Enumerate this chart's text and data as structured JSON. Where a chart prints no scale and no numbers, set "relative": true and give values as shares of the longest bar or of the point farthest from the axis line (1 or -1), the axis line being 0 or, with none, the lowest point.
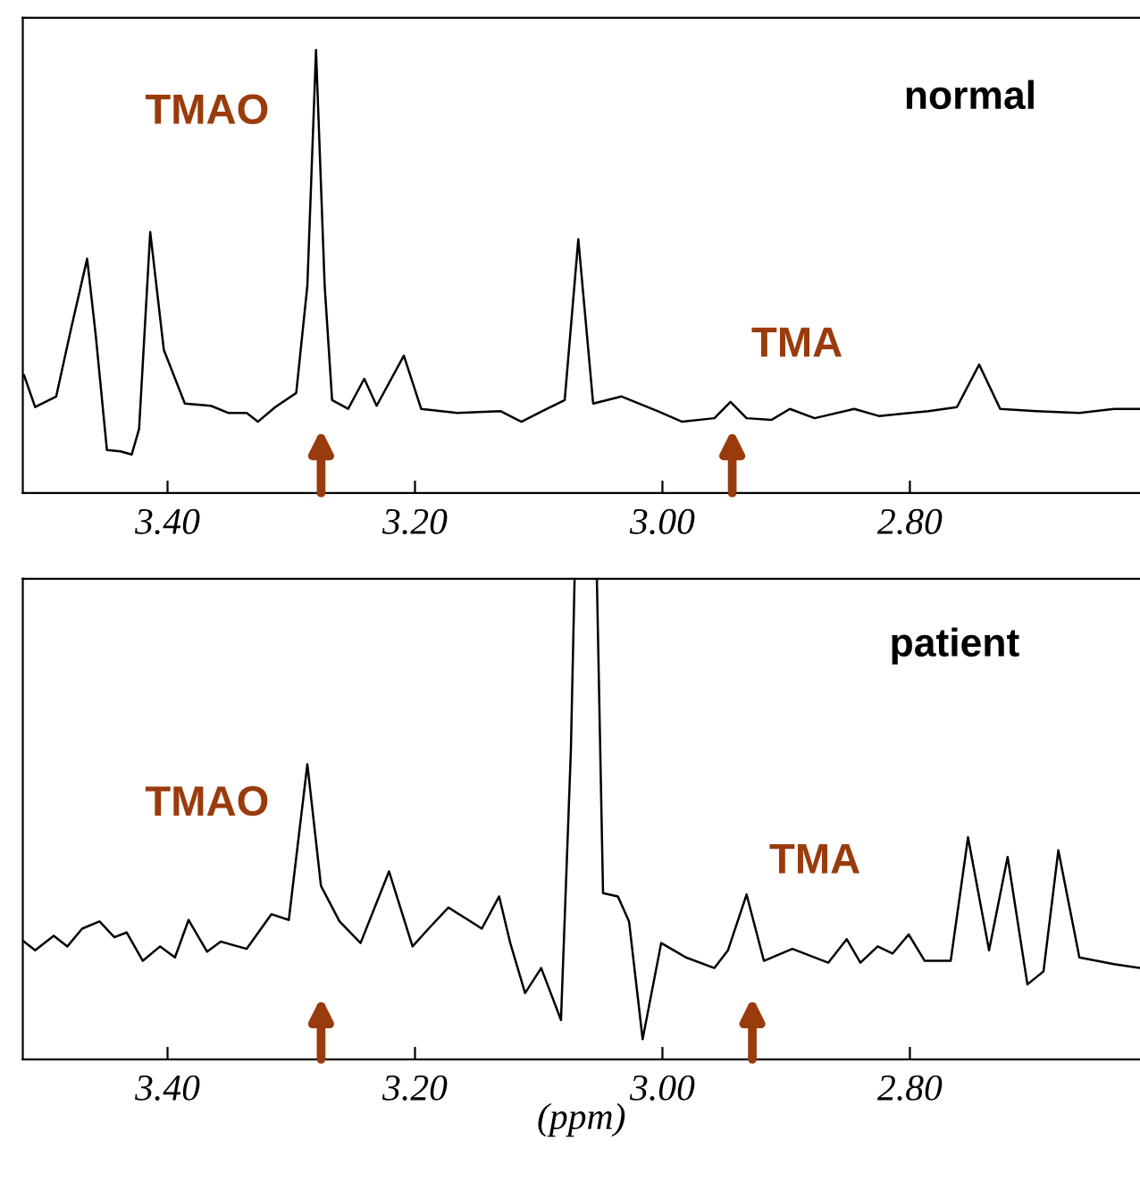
{
  "chart_data": [
    {
      "type": "line",
      "relative": true,
      "xlim": [
        3.517,
        2.614
      ],
      "xticks": [
        {
          "value": 3.4,
          "label": "3.40"
        },
        {
          "value": 3.2,
          "label": "3.20"
        },
        {
          "value": 3.0,
          "label": "3.00"
        },
        {
          "value": 2.8,
          "label": "2.80"
        }
      ],
      "tick_labels": "x",
      "annotations": [
        "TMAO",
        "TMA",
        "normal"
      ],
      "series": [
        {
          "color": "#000000",
          "x": [
            3.516,
            3.507,
            3.49,
            3.478,
            3.465,
            3.458,
            3.449,
            3.438,
            3.429,
            3.423,
            3.414,
            3.403,
            3.386,
            3.365,
            3.351,
            3.336,
            3.327,
            3.313,
            3.296,
            3.287,
            3.28,
            3.273,
            3.267,
            3.254,
            3.241,
            3.231,
            3.209,
            3.195,
            3.166,
            3.131,
            3.114,
            3.097,
            3.079,
            3.068,
            3.056,
            3.033,
            3.004,
            2.984,
            2.958,
            2.945,
            2.932,
            2.912,
            2.897,
            2.877,
            2.845,
            2.825,
            2.785,
            2.762,
            2.744,
            2.727,
            2.698,
            2.663,
            2.635,
            2.614
          ],
          "values": [
            0.266,
            0.194,
            0.218,
            0.371,
            0.529,
            0.355,
            0.097,
            0.094,
            0.087,
            0.145,
            0.589,
            0.323,
            0.202,
            0.197,
            0.181,
            0.181,
            0.161,
            0.194,
            0.226,
            0.468,
            1.0,
            0.468,
            0.21,
            0.19,
            0.258,
            0.197,
            0.31,
            0.19,
            0.181,
            0.185,
            0.161,
            0.185,
            0.21,
            0.573,
            0.202,
            0.218,
            0.185,
            0.161,
            0.169,
            0.206,
            0.169,
            0.165,
            0.19,
            0.169,
            0.19,
            0.174,
            0.185,
            0.194,
            0.29,
            0.19,
            0.185,
            0.181,
            0.19,
            0.19
          ]
        }
      ]
    },
    {
      "type": "line",
      "relative": true,
      "xlim": [
        3.517,
        2.614
      ],
      "xticks": [
        {
          "value": 3.4,
          "label": "3.40"
        },
        {
          "value": 3.2,
          "label": "3.20"
        },
        {
          "value": 3.0,
          "label": "3.00"
        },
        {
          "value": 2.8,
          "label": "2.80"
        }
      ],
      "tick_labels": "x",
      "xlabel": "(ppm)",
      "annotations": [
        "TMAO",
        "TMA",
        "patient"
      ],
      "series": [
        {
          "color": "#000000",
          "x": [
            3.516,
            3.507,
            3.492,
            3.481,
            3.469,
            3.455,
            3.443,
            3.433,
            3.42,
            3.406,
            3.394,
            3.383,
            3.368,
            3.357,
            3.336,
            3.316,
            3.302,
            3.287,
            3.276,
            3.261,
            3.244,
            3.221,
            3.202,
            3.189,
            3.173,
            3.157,
            3.146,
            3.132,
            3.123,
            3.111,
            3.098,
            3.082,
            3.074,
            3.071,
            3.053,
            3.048,
            3.036,
            3.027,
            3.016,
            3.001,
            2.981,
            2.958,
            2.947,
            2.932,
            2.918,
            2.895,
            2.866,
            2.851,
            2.84,
            2.826,
            2.814,
            2.801,
            2.788,
            2.767,
            2.753,
            2.736,
            2.721,
            2.705,
            2.692,
            2.68,
            2.663,
            2.635,
            2.614
          ],
          "values": [
            0.245,
            0.227,
            0.257,
            0.235,
            0.272,
            0.287,
            0.254,
            0.264,
            0.205,
            0.235,
            0.212,
            0.29,
            0.224,
            0.245,
            0.23,
            0.302,
            0.29,
            0.614,
            0.361,
            0.287,
            0.242,
            0.391,
            0.235,
            0.272,
            0.316,
            0.29,
            0.272,
            0.339,
            0.242,
            0.138,
            0.19,
            0.082,
            0.643,
            1.0,
            1.0,
            0.346,
            0.339,
            0.287,
            0.042,
            0.242,
            0.212,
            0.19,
            0.227,
            0.343,
            0.205,
            0.23,
            0.201,
            0.25,
            0.201,
            0.235,
            0.22,
            0.26,
            0.205,
            0.205,
            0.462,
            0.227,
            0.421,
            0.156,
            0.183,
            0.435,
            0.212,
            0.198,
            0.19
          ]
        }
      ]
    }
  ]
}
